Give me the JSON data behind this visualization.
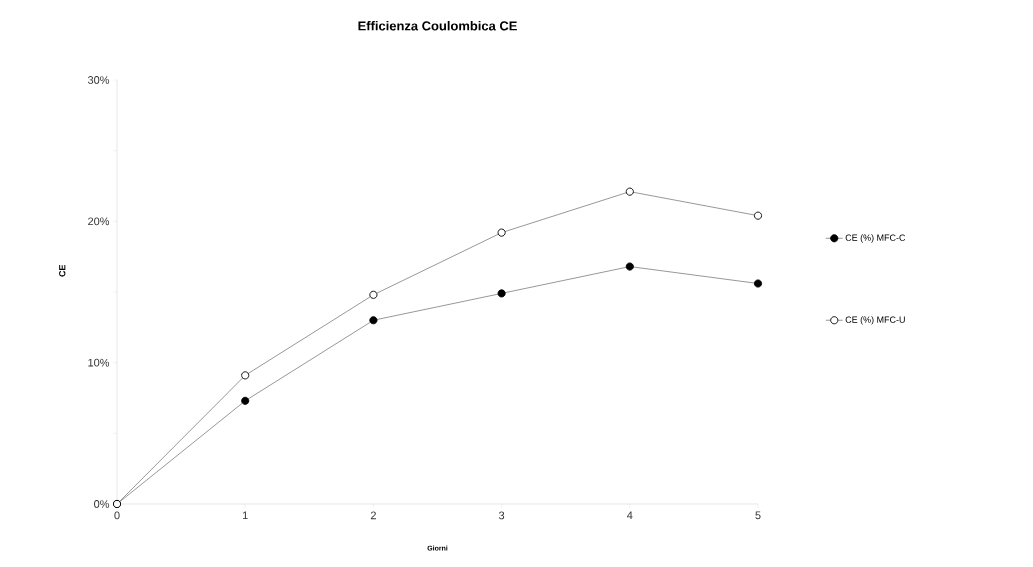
{
  "chart_data": {
    "type": "line",
    "title": "Efficienza Coulombica CE",
    "xlabel": "Giorni",
    "ylabel": "CE",
    "x": [
      0,
      1,
      2,
      3,
      4,
      5
    ],
    "series": [
      {
        "name": "CE (%) MFC-C",
        "color": "#000000",
        "values": [
          0,
          7.3,
          13.0,
          14.9,
          16.8,
          15.6
        ]
      },
      {
        "name": "CE (%) MFC-U",
        "color": "#ffffff",
        "values": [
          0,
          9.1,
          14.8,
          19.2,
          22.1,
          20.4
        ]
      }
    ],
    "xlim": [
      0,
      5
    ],
    "xticks": [
      0,
      1,
      2,
      3,
      4,
      5
    ],
    "ylim": [
      0,
      30
    ],
    "yticks": [
      {
        "value": 0,
        "label": "0%"
      },
      {
        "value": 5,
        "label": null
      },
      {
        "value": 10,
        "label": "10%"
      },
      {
        "value": 15,
        "label": null
      },
      {
        "value": 20,
        "label": "20%"
      },
      {
        "value": 25,
        "label": null
      },
      {
        "value": 30,
        "label": "30%"
      }
    ],
    "marker": "circle",
    "legend": "right",
    "grid": false
  }
}
